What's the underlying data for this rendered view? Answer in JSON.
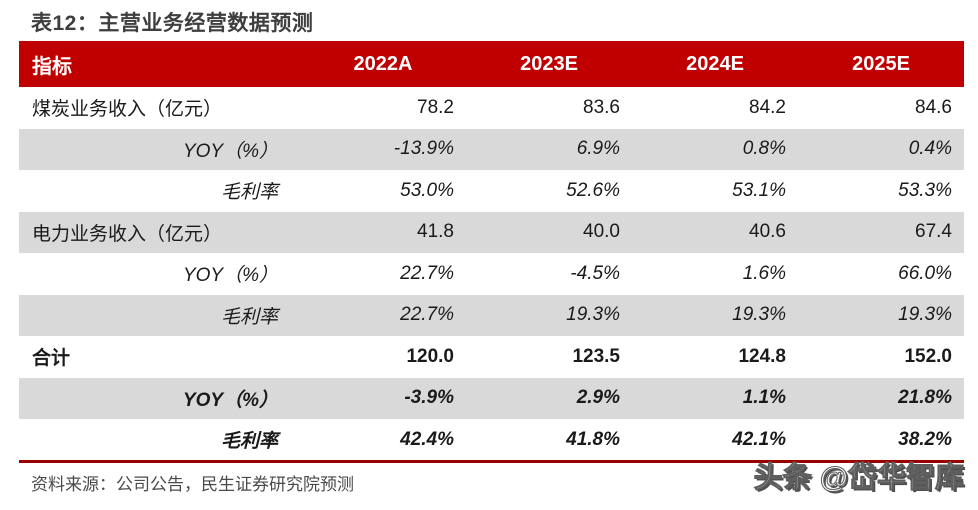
{
  "title": "表12：主营业务经营数据预测",
  "table": {
    "columns": [
      "指标",
      "2022A",
      "2023E",
      "2024E",
      "2025E"
    ],
    "rows": [
      {
        "label": "煤炭业务收入（亿元）",
        "values": [
          "78.2",
          "83.6",
          "84.2",
          "84.6"
        ]
      },
      {
        "label": "YOY（%）",
        "values": [
          "-13.9%",
          "6.9%",
          "0.8%",
          "0.4%"
        ]
      },
      {
        "label": "毛利率",
        "values": [
          "53.0%",
          "52.6%",
          "53.1%",
          "53.3%"
        ]
      },
      {
        "label": "电力业务收入（亿元）",
        "values": [
          "41.8",
          "40.0",
          "40.6",
          "67.4"
        ]
      },
      {
        "label": "YOY（%）",
        "values": [
          "22.7%",
          "-4.5%",
          "1.6%",
          "66.0%"
        ]
      },
      {
        "label": "毛利率",
        "values": [
          "22.7%",
          "19.3%",
          "19.3%",
          "19.3%"
        ]
      },
      {
        "label": "合计",
        "values": [
          "120.0",
          "123.5",
          "124.8",
          "152.0"
        ]
      },
      {
        "label": "YOY（%）",
        "values": [
          "-3.9%",
          "2.9%",
          "1.1%",
          "21.8%"
        ]
      },
      {
        "label": "毛利率",
        "values": [
          "42.4%",
          "41.8%",
          "42.1%",
          "38.2%"
        ]
      }
    ]
  },
  "footer": {
    "source": "资料来源：公司公告，民生证券研究院预测"
  },
  "watermark": {
    "text": "头条 @岱华智库"
  },
  "colors": {
    "header_bg": "#c00000",
    "row_alt_bg": "#d9d9d9",
    "bottom_rule": "#9b0000",
    "title_text": "#3f3f3f"
  }
}
